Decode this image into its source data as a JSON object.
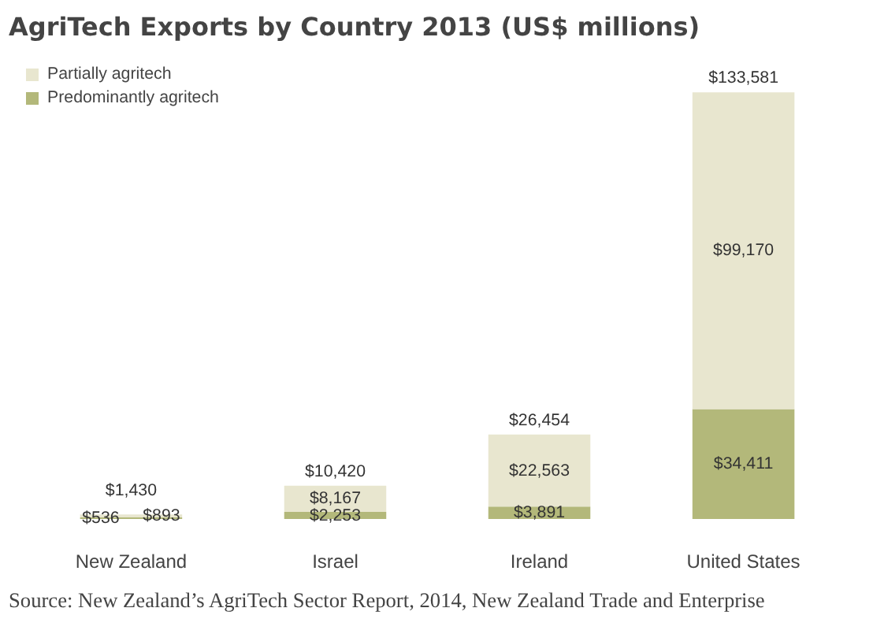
{
  "chart_data": {
    "type": "bar",
    "stacked": true,
    "title": "AgriTech Exports by Country 2013 (US$ millions)",
    "categories": [
      "New Zealand",
      "Israel",
      "Ireland",
      "United States"
    ],
    "series": [
      {
        "name": "Predominantly agritech",
        "color": "#b3b87a",
        "values": [
          536,
          2253,
          3891,
          34411
        ],
        "value_labels": [
          "$536",
          "$2,253",
          "$3,891",
          "$34,411"
        ]
      },
      {
        "name": "Partially agritech",
        "color": "#e8e6cf",
        "values": [
          893,
          8167,
          22563,
          99170
        ],
        "value_labels": [
          "$893",
          "$8,167",
          "$22,563",
          "$99,170"
        ]
      }
    ],
    "totals": [
      "$1,430",
      "$10,420",
      "$26,454",
      "$133,581"
    ],
    "legend": "top left",
    "grid": false,
    "annotations": [
      "Source: New Zealand’s AgriTech Sector Report, 2014, New Zealand Trade and Enterprise"
    ]
  }
}
